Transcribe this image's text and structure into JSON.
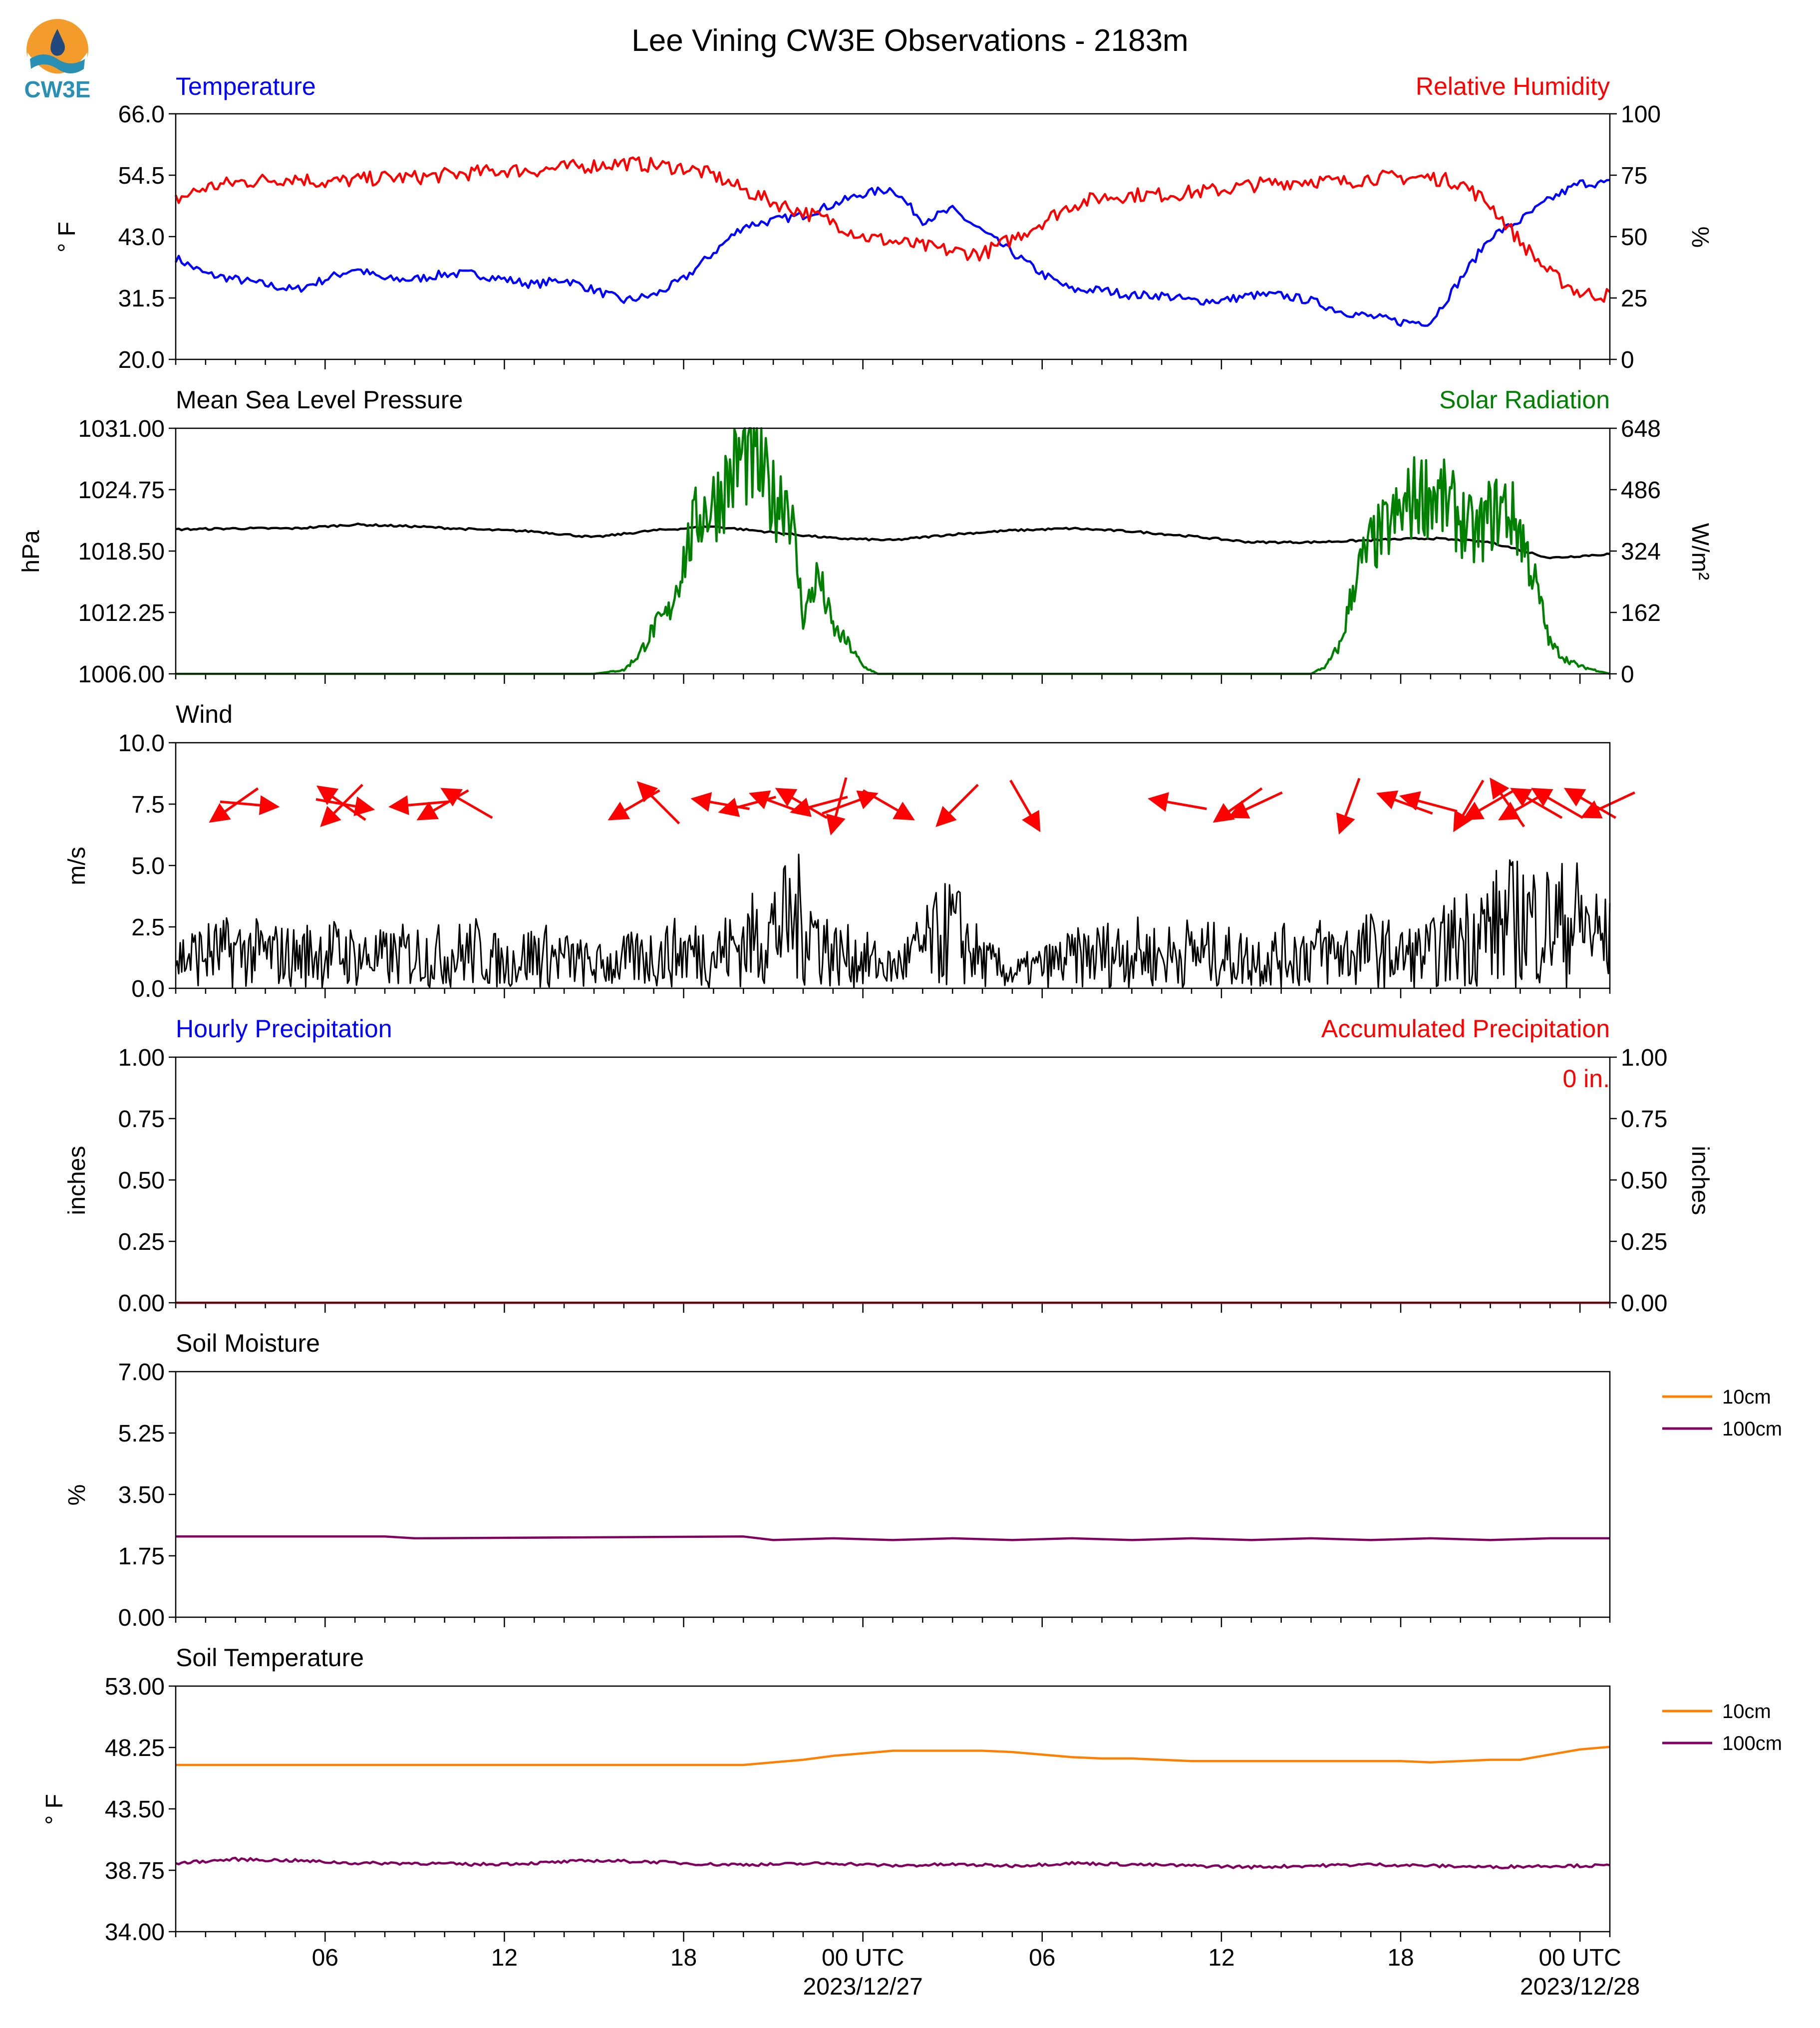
{
  "title": "Lee Vining CW3E Observations - 2183m",
  "logo": {
    "text": "CW3E",
    "colors": {
      "orange": "#f39c2b",
      "teal": "#2a8fb5",
      "navy": "#21497d"
    }
  },
  "colors": {
    "temp": "#0000ff",
    "rh": "#ff0000",
    "pressure": "#000000",
    "solar": "#008000",
    "wind": "#000000",
    "wind_arrow": "#ff0000",
    "soil10": "#ff8000",
    "soil100": "#800060"
  },
  "x_axis": {
    "range_hours": [
      0,
      48
    ],
    "tick_labels": [
      {
        "h": 5,
        "text": "06"
      },
      {
        "h": 11,
        "text": "12"
      },
      {
        "h": 17,
        "text": "18"
      },
      {
        "h": 23,
        "text": "00 UTC",
        "sub": "2023/12/27"
      },
      {
        "h": 29,
        "text": "06"
      },
      {
        "h": 35,
        "text": "12"
      },
      {
        "h": 41,
        "text": "18"
      },
      {
        "h": 47,
        "text": "00 UTC",
        "sub": "2023/12/28"
      }
    ]
  },
  "chart_data": [
    {
      "type": "line",
      "title_left": "Temperature",
      "title_right": "Relative Humidity",
      "ylabel": "° F",
      "ylabel_right": "%",
      "ylim": [
        20,
        66
      ],
      "yticks": [
        "20.0",
        "31.5",
        "43.0",
        "54.5",
        "66.0"
      ],
      "ylim_right": [
        0,
        100
      ],
      "yticks_right": [
        "0",
        "25",
        "50",
        "75",
        "100"
      ],
      "series": [
        {
          "name": "Temperature",
          "axis": "left",
          "x": [
            0,
            1,
            2,
            3,
            4,
            5,
            6,
            7,
            8,
            9,
            10,
            11,
            12,
            13,
            14,
            15,
            16,
            17,
            18,
            19,
            20,
            21,
            22,
            23,
            24,
            25,
            26,
            27,
            28,
            29,
            30,
            31,
            32,
            33,
            34,
            35,
            36,
            37,
            38,
            39,
            40,
            41,
            42,
            43,
            44,
            45,
            46,
            47,
            48
          ],
          "y": [
            39,
            36,
            35,
            34,
            33,
            35,
            37,
            35,
            35,
            36,
            36,
            35,
            34,
            35,
            33,
            31,
            32,
            35,
            40,
            45,
            46,
            47,
            49,
            51,
            52,
            46,
            48,
            44,
            40,
            36,
            33,
            33,
            32,
            32,
            31,
            31,
            32,
            32,
            31,
            29,
            28,
            27,
            27,
            35,
            43,
            46,
            50,
            53,
            53
          ]
        },
        {
          "name": "Relative Humidity",
          "axis": "right",
          "x": [
            0,
            1,
            2,
            3,
            4,
            5,
            6,
            7,
            8,
            9,
            10,
            11,
            12,
            13,
            14,
            15,
            16,
            17,
            18,
            19,
            20,
            21,
            22,
            23,
            24,
            25,
            26,
            27,
            28,
            29,
            30,
            31,
            32,
            33,
            34,
            35,
            36,
            37,
            38,
            39,
            40,
            41,
            42,
            43,
            44,
            45,
            46,
            47,
            48
          ],
          "y": [
            65,
            70,
            72,
            73,
            74,
            72,
            73,
            74,
            74,
            75,
            76,
            77,
            77,
            78,
            79,
            80,
            79,
            78,
            75,
            69,
            64,
            60,
            56,
            50,
            48,
            46,
            44,
            43,
            49,
            56,
            63,
            66,
            67,
            67,
            68,
            69,
            71,
            72,
            73,
            72,
            74,
            74,
            74,
            72,
            63,
            48,
            35,
            27,
            26
          ]
        }
      ]
    },
    {
      "type": "line",
      "title_left": "Mean Sea Level Pressure",
      "title_right": "Solar Radiation",
      "ylabel": "hPa",
      "ylabel_right": "W/m²",
      "ylim": [
        1006,
        1031
      ],
      "yticks": [
        "1006.00",
        "1012.25",
        "1018.50",
        "1024.75",
        "1031.00"
      ],
      "ylim_right": [
        0,
        648
      ],
      "yticks_right": [
        "0",
        "162",
        "324",
        "486",
        "648"
      ],
      "series": [
        {
          "name": "Mean Sea Level Pressure",
          "axis": "left",
          "x": [
            0,
            2,
            4,
            6,
            8,
            10,
            12,
            14,
            16,
            18,
            20,
            22,
            24,
            26,
            28,
            30,
            32,
            34,
            36,
            38,
            40,
            42,
            44,
            46,
            48
          ],
          "y": [
            1020.7,
            1020.8,
            1020.8,
            1021.2,
            1021.0,
            1020.7,
            1020.5,
            1019.9,
            1020.6,
            1021.0,
            1020.4,
            1019.8,
            1019.6,
            1020.2,
            1020.6,
            1020.8,
            1020.5,
            1020.0,
            1019.4,
            1019.4,
            1019.6,
            1019.8,
            1019.4,
            1017.8,
            1018.2
          ]
        },
        {
          "name": "Solar Radiation",
          "axis": "right",
          "x": [
            0,
            14,
            15,
            15.5,
            16,
            16.5,
            17,
            17.5,
            18,
            18.5,
            19,
            19.5,
            20,
            20.5,
            21,
            21.5,
            22,
            22.5,
            23,
            23.5,
            24,
            30,
            34,
            38,
            38.5,
            39,
            39.5,
            40,
            40.5,
            41,
            41.5,
            42,
            42.5,
            43,
            43.5,
            44,
            44.5,
            45,
            45.5,
            46,
            46.5,
            47,
            47.5,
            48
          ],
          "y": [
            0,
            0,
            10,
            50,
            120,
            160,
            300,
            420,
            450,
            510,
            580,
            540,
            460,
            480,
            150,
            260,
            120,
            80,
            20,
            0,
            0,
            0,
            0,
            0,
            20,
            80,
            260,
            340,
            380,
            420,
            470,
            480,
            450,
            410,
            360,
            420,
            440,
            380,
            240,
            80,
            40,
            20,
            10,
            0
          ]
        }
      ]
    },
    {
      "type": "line",
      "title_left": "Wind",
      "ylabel": "m/s",
      "ylim": [
        0,
        10
      ],
      "yticks": [
        "0.0",
        "2.5",
        "5.0",
        "7.5",
        "10.0"
      ],
      "series": [
        {
          "name": "Wind speed",
          "x": [
            0,
            1,
            2,
            3,
            4,
            5,
            6,
            7,
            8,
            9,
            10,
            11,
            12,
            13,
            14,
            15,
            16,
            17,
            18,
            19,
            20,
            21,
            22,
            23,
            24,
            25,
            26,
            27,
            28,
            29,
            30,
            31,
            32,
            33,
            34,
            35,
            36,
            37,
            38,
            39,
            40,
            41,
            42,
            43,
            44,
            45,
            46,
            47,
            48
          ],
          "y": [
            1.2,
            1.4,
            1.5,
            1.4,
            1.3,
            1.5,
            1.3,
            1.2,
            1.4,
            1.3,
            1.5,
            1.0,
            1.4,
            1.2,
            0.9,
            1.1,
            1.3,
            1.5,
            1.4,
            1.8,
            2.4,
            2.8,
            1.4,
            1.2,
            0.8,
            1.6,
            2.4,
            1.1,
            0.6,
            0.9,
            1.2,
            1.4,
            1.5,
            1.3,
            1.5,
            1.3,
            1.2,
            1.3,
            1.5,
            1.4,
            1.6,
            1.3,
            1.4,
            2.1,
            2.4,
            2.8,
            2.6,
            2.7,
            1.8
          ]
        }
      ],
      "barbs": [
        {
          "h": 2.0,
          "dir": 235
        },
        {
          "h": 2.4,
          "dir": 95
        },
        {
          "h": 5.6,
          "dir": 100
        },
        {
          "h": 5.6,
          "dir": 225
        },
        {
          "h": 5.6,
          "dir": 305
        },
        {
          "h": 8.2,
          "dir": 265
        },
        {
          "h": 9.0,
          "dir": 240
        },
        {
          "h": 9.8,
          "dir": 300
        },
        {
          "h": 15.4,
          "dir": 240
        },
        {
          "h": 16.2,
          "dir": 315
        },
        {
          "h": 18.3,
          "dir": 280
        },
        {
          "h": 19.2,
          "dir": 255
        },
        {
          "h": 20.2,
          "dir": 290
        },
        {
          "h": 21.0,
          "dir": 300
        },
        {
          "h": 21.6,
          "dir": 255
        },
        {
          "h": 22.2,
          "dir": 195
        },
        {
          "h": 22.5,
          "dir": 70
        },
        {
          "h": 23.8,
          "dir": 120
        },
        {
          "h": 26.2,
          "dir": 225
        },
        {
          "h": 28.4,
          "dir": 150
        },
        {
          "h": 33.6,
          "dir": 280
        },
        {
          "h": 35.6,
          "dir": 235
        },
        {
          "h": 36.2,
          "dir": 245
        },
        {
          "h": 39.3,
          "dir": 200
        },
        {
          "h": 41.2,
          "dir": 290
        },
        {
          "h": 42.0,
          "dir": 285
        },
        {
          "h": 43.3,
          "dir": 210
        },
        {
          "h": 44.0,
          "dir": 240
        },
        {
          "h": 44.6,
          "dir": 325
        },
        {
          "h": 45.2,
          "dir": 240
        },
        {
          "h": 45.6,
          "dir": 300
        },
        {
          "h": 46.3,
          "dir": 300
        },
        {
          "h": 47.4,
          "dir": 300
        },
        {
          "h": 48.0,
          "dir": 245
        }
      ]
    },
    {
      "type": "line",
      "title_left": "Hourly Precipitation",
      "title_right": "Accumulated Precipitation",
      "annotation": "0 in.",
      "ylabel": "inches",
      "ylabel_right": "inches",
      "ylim": [
        0,
        1
      ],
      "yticks": [
        "0.00",
        "0.25",
        "0.50",
        "0.75",
        "1.00"
      ],
      "ylim_right": [
        0,
        1
      ],
      "yticks_right": [
        "0.00",
        "0.25",
        "0.50",
        "0.75",
        "1.00"
      ],
      "series": [
        {
          "name": "Hourly Precipitation",
          "axis": "left",
          "x": [
            0,
            48
          ],
          "y": [
            0,
            0
          ]
        },
        {
          "name": "Accumulated Precipitation",
          "axis": "right",
          "x": [
            0,
            48
          ],
          "y": [
            0,
            0
          ]
        }
      ]
    },
    {
      "type": "line",
      "title_left": "Soil Moisture",
      "ylabel": "%",
      "ylim": [
        0,
        7
      ],
      "yticks": [
        "0.00",
        "1.75",
        "3.50",
        "5.25",
        "7.00"
      ],
      "legend": [
        "10cm",
        "100cm"
      ],
      "series": [
        {
          "name": "100cm",
          "x": [
            0,
            7,
            8,
            19,
            20,
            22,
            24,
            26,
            28,
            30,
            32,
            34,
            36,
            38,
            40,
            42,
            44,
            46,
            48
          ],
          "y": [
            2.3,
            2.3,
            2.25,
            2.3,
            2.2,
            2.25,
            2.2,
            2.25,
            2.2,
            2.25,
            2.2,
            2.25,
            2.2,
            2.25,
            2.2,
            2.25,
            2.2,
            2.25,
            2.25
          ]
        }
      ]
    },
    {
      "type": "line",
      "title_left": "Soil Temperature",
      "ylabel": "° F",
      "ylim": [
        34,
        53
      ],
      "yticks": [
        "34.00",
        "38.75",
        "43.50",
        "48.25",
        "53.00"
      ],
      "legend": [
        "10cm",
        "100cm"
      ],
      "series": [
        {
          "name": "10cm",
          "x": [
            0,
            19,
            20,
            21,
            22,
            23,
            24,
            25,
            26,
            27,
            28,
            29,
            30,
            31,
            32,
            33,
            34,
            35,
            36,
            37,
            38,
            39,
            40,
            41,
            42,
            43,
            44,
            45,
            46,
            47,
            48
          ],
          "y": [
            46.9,
            46.9,
            47.1,
            47.3,
            47.6,
            47.8,
            48.0,
            48.0,
            48.0,
            48.0,
            47.9,
            47.7,
            47.5,
            47.4,
            47.4,
            47.3,
            47.2,
            47.2,
            47.2,
            47.2,
            47.2,
            47.2,
            47.2,
            47.2,
            47.1,
            47.2,
            47.3,
            47.3,
            47.7,
            48.1,
            48.3
          ]
        },
        {
          "name": "100cm",
          "x": [
            0,
            2,
            4,
            6,
            8,
            10,
            12,
            14,
            16,
            18,
            20,
            22,
            24,
            26,
            28,
            30,
            32,
            34,
            36,
            38,
            40,
            42,
            44,
            46,
            48
          ],
          "y": [
            39.3,
            39.6,
            39.5,
            39.3,
            39.3,
            39.2,
            39.3,
            39.5,
            39.4,
            39.2,
            39.2,
            39.3,
            39.1,
            39.2,
            39.1,
            39.3,
            39.2,
            39.1,
            39.0,
            39.1,
            39.2,
            39.1,
            39.0,
            39.1,
            39.1
          ]
        }
      ]
    }
  ]
}
